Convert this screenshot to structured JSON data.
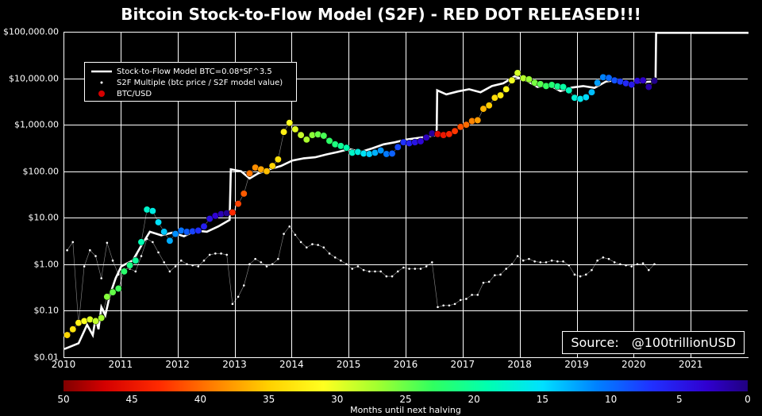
{
  "title": "Bitcoin Stock-to-Flow Model (S2F) - RED DOT RELEASED!!!",
  "source": "Source: @100trillionUSD",
  "xlabel": "Months until next halving",
  "legend": {
    "model": "Stock-to-Flow Model BTC=0.08*SF^3.5",
    "multiple": "S2F Multiple (btc price / S2F model value)",
    "btc": "BTC/USD"
  },
  "chart": {
    "type": "line+scatter",
    "background_color": "#000000",
    "grid_color": "#ffffff",
    "text_color": "#ffffff",
    "model_line_color": "#ffffff",
    "model_line_width": 2.6,
    "mult_dot_color": "#ffffff",
    "mult_dot_radius": 1.3,
    "btc_dot_radius": 4.2,
    "title_fontsize": 20,
    "tick_fontsize": 12,
    "x": {
      "min": 2010.0,
      "max": 2022.0,
      "ticks": [
        2010,
        2011,
        2012,
        2013,
        2014,
        2015,
        2016,
        2017,
        2018,
        2019,
        2020,
        2021
      ]
    },
    "y": {
      "type": "log",
      "min": 0.01,
      "max": 100000,
      "ticks": [
        0.01,
        0.1,
        1,
        10,
        100,
        1000,
        10000,
        100000
      ],
      "tick_labels": [
        "$0.01",
        "$0.10",
        "$1.00",
        "$10.00",
        "$100.00",
        "$1,000.00",
        "$10,000.00",
        "$100,000.00"
      ]
    },
    "colorbar": {
      "axis_label": "Months until next halving",
      "ticks": [
        50,
        45,
        40,
        35,
        30,
        25,
        20,
        15,
        10,
        5,
        0
      ],
      "stops": [
        [
          0.0,
          "#800000"
        ],
        [
          0.06,
          "#d40000"
        ],
        [
          0.14,
          "#ff2a00"
        ],
        [
          0.22,
          "#ff8000"
        ],
        [
          0.3,
          "#ffd000"
        ],
        [
          0.38,
          "#ffff20"
        ],
        [
          0.46,
          "#a0ff30"
        ],
        [
          0.54,
          "#30ff60"
        ],
        [
          0.62,
          "#00ffb0"
        ],
        [
          0.7,
          "#00e0ff"
        ],
        [
          0.78,
          "#0080ff"
        ],
        [
          0.86,
          "#2030ff"
        ],
        [
          0.94,
          "#3000d0"
        ],
        [
          1.0,
          "#200080"
        ]
      ]
    },
    "halvings": [
      2012.92,
      2016.54,
      2020.38
    ],
    "first_halving": 2012.92,
    "cycle_months": 48,
    "model": [
      [
        2010.0,
        0.015
      ],
      [
        2010.25,
        0.02
      ],
      [
        2010.4,
        0.05
      ],
      [
        2010.5,
        0.03
      ],
      [
        2010.55,
        0.07
      ],
      [
        2010.6,
        0.04
      ],
      [
        2010.65,
        0.12
      ],
      [
        2010.72,
        0.08
      ],
      [
        2010.8,
        0.22
      ],
      [
        2010.9,
        0.5
      ],
      [
        2011.0,
        0.9
      ],
      [
        2011.2,
        1.2
      ],
      [
        2011.35,
        2.5
      ],
      [
        2011.5,
        5.0
      ],
      [
        2011.7,
        4.2
      ],
      [
        2011.9,
        4.8
      ],
      [
        2012.1,
        4.0
      ],
      [
        2012.3,
        5.3
      ],
      [
        2012.5,
        5.0
      ],
      [
        2012.7,
        6.5
      ],
      [
        2012.9,
        9.0
      ],
      [
        2012.92,
        110.0
      ],
      [
        2013.1,
        100
      ],
      [
        2013.25,
        70
      ],
      [
        2013.4,
        90
      ],
      [
        2013.6,
        110
      ],
      [
        2013.8,
        130
      ],
      [
        2014.0,
        170
      ],
      [
        2014.2,
        190
      ],
      [
        2014.4,
        200
      ],
      [
        2014.6,
        230
      ],
      [
        2014.8,
        260
      ],
      [
        2015.0,
        300
      ],
      [
        2015.2,
        260
      ],
      [
        2015.4,
        310
      ],
      [
        2015.6,
        380
      ],
      [
        2015.8,
        420
      ],
      [
        2016.0,
        480
      ],
      [
        2016.2,
        520
      ],
      [
        2016.4,
        560
      ],
      [
        2016.53,
        600
      ],
      [
        2016.54,
        5500
      ],
      [
        2016.7,
        4500
      ],
      [
        2016.9,
        5200
      ],
      [
        2017.1,
        5800
      ],
      [
        2017.3,
        5000
      ],
      [
        2017.5,
        6800
      ],
      [
        2017.7,
        7800
      ],
      [
        2017.9,
        11000
      ],
      [
        2018.1,
        9000
      ],
      [
        2018.3,
        6500
      ],
      [
        2018.5,
        7200
      ],
      [
        2018.7,
        5300
      ],
      [
        2018.9,
        6300
      ],
      [
        2019.1,
        6800
      ],
      [
        2019.3,
        6200
      ],
      [
        2019.5,
        8500
      ],
      [
        2019.7,
        9200
      ],
      [
        2019.9,
        7800
      ],
      [
        2020.1,
        8200
      ],
      [
        2020.3,
        8500
      ],
      [
        2020.37,
        9000
      ],
      [
        2020.38,
        95000
      ],
      [
        2020.6,
        95000
      ],
      [
        2021.0,
        95000
      ],
      [
        2021.5,
        95000
      ],
      [
        2022.0,
        95000
      ]
    ],
    "btc": [
      [
        2010.05,
        0.03
      ],
      [
        2010.15,
        0.04
      ],
      [
        2010.25,
        0.055
      ],
      [
        2010.35,
        0.06
      ],
      [
        2010.45,
        0.065
      ],
      [
        2010.55,
        0.06
      ],
      [
        2010.65,
        0.07
      ],
      [
        2010.75,
        0.2
      ],
      [
        2010.85,
        0.25
      ],
      [
        2010.95,
        0.3
      ],
      [
        2011.05,
        0.7
      ],
      [
        2011.15,
        0.95
      ],
      [
        2011.25,
        1.2
      ],
      [
        2011.35,
        3.0
      ],
      [
        2011.45,
        15
      ],
      [
        2011.55,
        14
      ],
      [
        2011.65,
        8
      ],
      [
        2011.75,
        5
      ],
      [
        2011.85,
        3.2
      ],
      [
        2011.95,
        4.5
      ],
      [
        2012.05,
        5.3
      ],
      [
        2012.15,
        5.0
      ],
      [
        2012.25,
        5.1
      ],
      [
        2012.35,
        5.3
      ],
      [
        2012.45,
        6.5
      ],
      [
        2012.55,
        9.5
      ],
      [
        2012.65,
        11
      ],
      [
        2012.75,
        12
      ],
      [
        2012.85,
        12.5
      ],
      [
        2012.95,
        13
      ],
      [
        2013.05,
        20
      ],
      [
        2013.15,
        33
      ],
      [
        2013.25,
        90
      ],
      [
        2013.35,
        120
      ],
      [
        2013.45,
        110
      ],
      [
        2013.55,
        100
      ],
      [
        2013.65,
        130
      ],
      [
        2013.75,
        180
      ],
      [
        2013.85,
        700
      ],
      [
        2013.95,
        1100
      ],
      [
        2014.05,
        800
      ],
      [
        2014.15,
        600
      ],
      [
        2014.25,
        480
      ],
      [
        2014.35,
        600
      ],
      [
        2014.45,
        620
      ],
      [
        2014.55,
        580
      ],
      [
        2014.65,
        450
      ],
      [
        2014.75,
        380
      ],
      [
        2014.85,
        350
      ],
      [
        2014.95,
        320
      ],
      [
        2015.05,
        250
      ],
      [
        2015.15,
        260
      ],
      [
        2015.25,
        240
      ],
      [
        2015.35,
        235
      ],
      [
        2015.45,
        250
      ],
      [
        2015.55,
        280
      ],
      [
        2015.65,
        235
      ],
      [
        2015.75,
        240
      ],
      [
        2015.85,
        330
      ],
      [
        2015.95,
        420
      ],
      [
        2016.05,
        400
      ],
      [
        2016.15,
        420
      ],
      [
        2016.25,
        440
      ],
      [
        2016.35,
        530
      ],
      [
        2016.45,
        650
      ],
      [
        2016.55,
        630
      ],
      [
        2016.65,
        600
      ],
      [
        2016.75,
        630
      ],
      [
        2016.85,
        730
      ],
      [
        2016.95,
        900
      ],
      [
        2017.05,
        1000
      ],
      [
        2017.15,
        1200
      ],
      [
        2017.25,
        1250
      ],
      [
        2017.35,
        2200
      ],
      [
        2017.45,
        2600
      ],
      [
        2017.55,
        3800
      ],
      [
        2017.65,
        4300
      ],
      [
        2017.75,
        5800
      ],
      [
        2017.85,
        9000
      ],
      [
        2017.95,
        13000
      ],
      [
        2018.05,
        10000
      ],
      [
        2018.15,
        9500
      ],
      [
        2018.25,
        8000
      ],
      [
        2018.35,
        7500
      ],
      [
        2018.45,
        6800
      ],
      [
        2018.55,
        7200
      ],
      [
        2018.65,
        6700
      ],
      [
        2018.75,
        6500
      ],
      [
        2018.85,
        5500
      ],
      [
        2018.95,
        3800
      ],
      [
        2019.05,
        3600
      ],
      [
        2019.15,
        3900
      ],
      [
        2019.25,
        5000
      ],
      [
        2019.35,
        8000
      ],
      [
        2019.45,
        10500
      ],
      [
        2019.55,
        10200
      ],
      [
        2019.65,
        9000
      ],
      [
        2019.75,
        8500
      ],
      [
        2019.85,
        7800
      ],
      [
        2019.95,
        7300
      ],
      [
        2020.05,
        8800
      ],
      [
        2020.15,
        9000
      ],
      [
        2020.25,
        6500
      ],
      [
        2020.35,
        8800
      ]
    ],
    "s2f_multiple": [
      [
        2010.05,
        2.0
      ],
      [
        2010.15,
        3.0
      ],
      [
        2010.25,
        0.05
      ],
      [
        2010.35,
        0.9
      ],
      [
        2010.45,
        2.0
      ],
      [
        2010.55,
        1.5
      ],
      [
        2010.65,
        0.5
      ],
      [
        2010.75,
        2.9
      ],
      [
        2010.85,
        1.2
      ],
      [
        2010.95,
        0.6
      ],
      [
        2011.05,
        0.8
      ],
      [
        2011.15,
        0.8
      ],
      [
        2011.25,
        0.7
      ],
      [
        2011.35,
        1.5
      ],
      [
        2011.45,
        3.5
      ],
      [
        2011.55,
        3.0
      ],
      [
        2011.65,
        1.8
      ],
      [
        2011.75,
        1.1
      ],
      [
        2011.85,
        0.7
      ],
      [
        2011.95,
        0.9
      ],
      [
        2012.05,
        1.2
      ],
      [
        2012.15,
        1.0
      ],
      [
        2012.25,
        0.95
      ],
      [
        2012.35,
        0.9
      ],
      [
        2012.45,
        1.2
      ],
      [
        2012.55,
        1.6
      ],
      [
        2012.65,
        1.7
      ],
      [
        2012.75,
        1.7
      ],
      [
        2012.85,
        1.6
      ],
      [
        2012.95,
        0.14
      ],
      [
        2013.05,
        0.2
      ],
      [
        2013.15,
        0.35
      ],
      [
        2013.25,
        1.0
      ],
      [
        2013.35,
        1.3
      ],
      [
        2013.45,
        1.1
      ],
      [
        2013.55,
        0.9
      ],
      [
        2013.65,
        1.0
      ],
      [
        2013.75,
        1.3
      ],
      [
        2013.85,
        4.5
      ],
      [
        2013.95,
        6.5
      ],
      [
        2014.05,
        4.3
      ],
      [
        2014.15,
        3.0
      ],
      [
        2014.25,
        2.3
      ],
      [
        2014.35,
        2.7
      ],
      [
        2014.45,
        2.6
      ],
      [
        2014.55,
        2.3
      ],
      [
        2014.65,
        1.7
      ],
      [
        2014.75,
        1.4
      ],
      [
        2014.85,
        1.2
      ],
      [
        2014.95,
        1.0
      ],
      [
        2015.05,
        0.8
      ],
      [
        2015.15,
        0.9
      ],
      [
        2015.25,
        0.75
      ],
      [
        2015.35,
        0.7
      ],
      [
        2015.45,
        0.7
      ],
      [
        2015.55,
        0.7
      ],
      [
        2015.65,
        0.55
      ],
      [
        2015.75,
        0.55
      ],
      [
        2015.85,
        0.7
      ],
      [
        2015.95,
        0.85
      ],
      [
        2016.05,
        0.8
      ],
      [
        2016.15,
        0.8
      ],
      [
        2016.25,
        0.8
      ],
      [
        2016.35,
        0.9
      ],
      [
        2016.45,
        1.1
      ],
      [
        2016.55,
        0.12
      ],
      [
        2016.65,
        0.13
      ],
      [
        2016.75,
        0.13
      ],
      [
        2016.85,
        0.14
      ],
      [
        2016.95,
        0.17
      ],
      [
        2017.05,
        0.18
      ],
      [
        2017.15,
        0.22
      ],
      [
        2017.25,
        0.22
      ],
      [
        2017.35,
        0.4
      ],
      [
        2017.45,
        0.42
      ],
      [
        2017.55,
        0.58
      ],
      [
        2017.65,
        0.6
      ],
      [
        2017.75,
        0.8
      ],
      [
        2017.85,
        1.0
      ],
      [
        2017.95,
        1.5
      ],
      [
        2018.05,
        1.2
      ],
      [
        2018.15,
        1.3
      ],
      [
        2018.25,
        1.15
      ],
      [
        2018.35,
        1.1
      ],
      [
        2018.45,
        1.1
      ],
      [
        2018.55,
        1.2
      ],
      [
        2018.65,
        1.15
      ],
      [
        2018.75,
        1.15
      ],
      [
        2018.85,
        0.95
      ],
      [
        2018.95,
        0.6
      ],
      [
        2019.05,
        0.55
      ],
      [
        2019.15,
        0.6
      ],
      [
        2019.25,
        0.75
      ],
      [
        2019.35,
        1.2
      ],
      [
        2019.45,
        1.4
      ],
      [
        2019.55,
        1.3
      ],
      [
        2019.65,
        1.1
      ],
      [
        2019.75,
        1.0
      ],
      [
        2019.85,
        0.95
      ],
      [
        2019.95,
        0.9
      ],
      [
        2020.05,
        1.0
      ],
      [
        2020.15,
        1.05
      ],
      [
        2020.25,
        0.75
      ],
      [
        2020.35,
        1.0
      ]
    ]
  }
}
